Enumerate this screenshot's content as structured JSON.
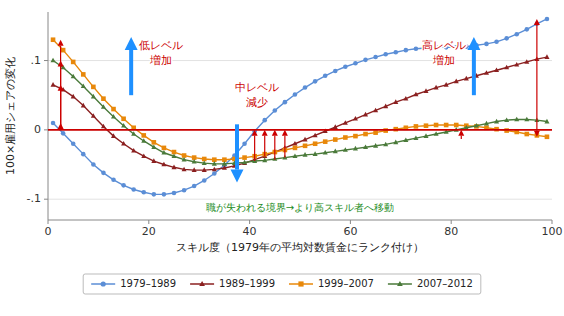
{
  "chart_data": {
    "type": "line",
    "x_label": "スキル度（1979年の平均対数賃金にランク付け）",
    "y_label": "100×雇用シェアの変化",
    "x": [
      1,
      3,
      5,
      7,
      9,
      11,
      13,
      15,
      17,
      19,
      21,
      23,
      25,
      27,
      29,
      31,
      33,
      35,
      37,
      39,
      41,
      43,
      45,
      47,
      49,
      51,
      53,
      55,
      57,
      59,
      61,
      63,
      65,
      67,
      69,
      71,
      73,
      75,
      77,
      79,
      81,
      83,
      85,
      87,
      89,
      91,
      93,
      95,
      97,
      99
    ],
    "series": [
      {
        "name": "1979–1989",
        "color": "#5B8ED6",
        "marker": "circle",
        "values": [
          0.01,
          -0.005,
          -0.02,
          -0.035,
          -0.05,
          -0.062,
          -0.072,
          -0.08,
          -0.086,
          -0.09,
          -0.093,
          -0.093,
          -0.091,
          -0.087,
          -0.081,
          -0.073,
          -0.063,
          -0.051,
          -0.037,
          -0.02,
          -0.002,
          0.014,
          0.028,
          0.04,
          0.051,
          0.061,
          0.07,
          0.078,
          0.085,
          0.091,
          0.096,
          0.101,
          0.105,
          0.109,
          0.112,
          0.115,
          0.117,
          0.118,
          0.119,
          0.119,
          0.119,
          0.12,
          0.122,
          0.124,
          0.127,
          0.132,
          0.138,
          0.145,
          0.153,
          0.16
        ]
      },
      {
        "name": "1989–1999",
        "color": "#8B2020",
        "marker": "triangle",
        "values": [
          0.065,
          0.058,
          0.048,
          0.035,
          0.02,
          0.005,
          -0.009,
          -0.02,
          -0.03,
          -0.038,
          -0.045,
          -0.05,
          -0.054,
          -0.057,
          -0.058,
          -0.058,
          -0.057,
          -0.055,
          -0.052,
          -0.048,
          -0.043,
          -0.038,
          -0.032,
          -0.026,
          -0.02,
          -0.014,
          -0.008,
          -0.002,
          0.004,
          0.01,
          0.016,
          0.022,
          0.028,
          0.034,
          0.04,
          0.045,
          0.051,
          0.056,
          0.061,
          0.065,
          0.07,
          0.074,
          0.078,
          0.082,
          0.086,
          0.09,
          0.094,
          0.098,
          0.102,
          0.105
        ]
      },
      {
        "name": "1999–2007",
        "color": "#E8880A",
        "marker": "square",
        "values": [
          0.13,
          0.115,
          0.098,
          0.08,
          0.062,
          0.045,
          0.03,
          0.016,
          0.003,
          -0.008,
          -0.018,
          -0.026,
          -0.032,
          -0.037,
          -0.04,
          -0.042,
          -0.043,
          -0.043,
          -0.042,
          -0.04,
          -0.038,
          -0.035,
          -0.032,
          -0.029,
          -0.026,
          -0.023,
          -0.02,
          -0.017,
          -0.014,
          -0.011,
          -0.009,
          -0.006,
          -0.004,
          -0.001,
          0.001,
          0.003,
          0.005,
          0.006,
          0.007,
          0.007,
          0.007,
          0.006,
          0.005,
          0.003,
          0.001,
          -0.001,
          -0.003,
          -0.006,
          -0.008,
          -0.01
        ]
      },
      {
        "name": "2007–2012",
        "color": "#4A7A3A",
        "marker": "triangle",
        "values": [
          0.1,
          0.09,
          0.077,
          0.063,
          0.048,
          0.033,
          0.019,
          0.006,
          -0.006,
          -0.016,
          -0.025,
          -0.033,
          -0.038,
          -0.043,
          -0.046,
          -0.048,
          -0.049,
          -0.049,
          -0.048,
          -0.047,
          -0.045,
          -0.044,
          -0.042,
          -0.04,
          -0.038,
          -0.036,
          -0.035,
          -0.033,
          -0.031,
          -0.029,
          -0.027,
          -0.025,
          -0.023,
          -0.021,
          -0.018,
          -0.015,
          -0.012,
          -0.009,
          -0.006,
          -0.003,
          0.0,
          0.003,
          0.006,
          0.009,
          0.012,
          0.014,
          0.015,
          0.015,
          0.014,
          0.012
        ]
      }
    ],
    "xlim": [
      0,
      100
    ],
    "ylim": [
      -0.13,
      0.17
    ],
    "xticks": [
      0,
      20,
      40,
      60,
      80,
      100
    ],
    "yticks": [
      {
        "value": -0.1,
        "label": "-.1"
      },
      0,
      {
        "value": 0.1,
        "label": ".1"
      }
    ],
    "grid": true,
    "legend": "bottom",
    "zero_line": {
      "value": 0,
      "color": "#CC0000"
    },
    "annotations": [
      {
        "text": "低レベル\n増加",
        "color": "#CC0000",
        "arrow": "up",
        "arrow_color": "#1E90FF"
      },
      {
        "text": "高レベル\n増加",
        "color": "#CC0000",
        "arrow": "up",
        "arrow_color": "#1E90FF"
      },
      {
        "text": "中レベル\n減少",
        "color": "#CC0000",
        "arrow": "down",
        "arrow_color": "#1E90FF"
      },
      {
        "text": "職が失われる境界→より高スキル者へ移動",
        "color": "#228B22"
      }
    ],
    "arrows": [
      {
        "x": 2.5,
        "from": 0.0,
        "to": 0.13,
        "color": "#CC0000"
      },
      {
        "x": 2.5,
        "from": 0.0,
        "to": 0.1,
        "color": "#CC0000"
      },
      {
        "x": 2.5,
        "from": 0.0,
        "to": 0.065,
        "color": "#CC0000"
      },
      {
        "x": 2.5,
        "from": 0.0,
        "to": 0.01,
        "color": "#CC0000"
      },
      {
        "x": 47,
        "from": -0.04,
        "to": 0.0,
        "color": "#CC0000"
      },
      {
        "x": 45,
        "from": -0.043,
        "to": 0.0,
        "color": "#CC0000"
      },
      {
        "x": 43,
        "from": -0.038,
        "to": 0.0,
        "color": "#CC0000"
      },
      {
        "x": 41,
        "from": -0.045,
        "to": 0.0,
        "color": "#CC0000"
      },
      {
        "x": 82,
        "from": -0.013,
        "to": 0.0,
        "color": "#CC0000"
      },
      {
        "x": 97,
        "from": 0.0,
        "to": 0.16,
        "color": "#CC0000"
      },
      {
        "x": 97,
        "from": 0.0,
        "to": -0.01,
        "color": "#CC0000"
      }
    ]
  }
}
